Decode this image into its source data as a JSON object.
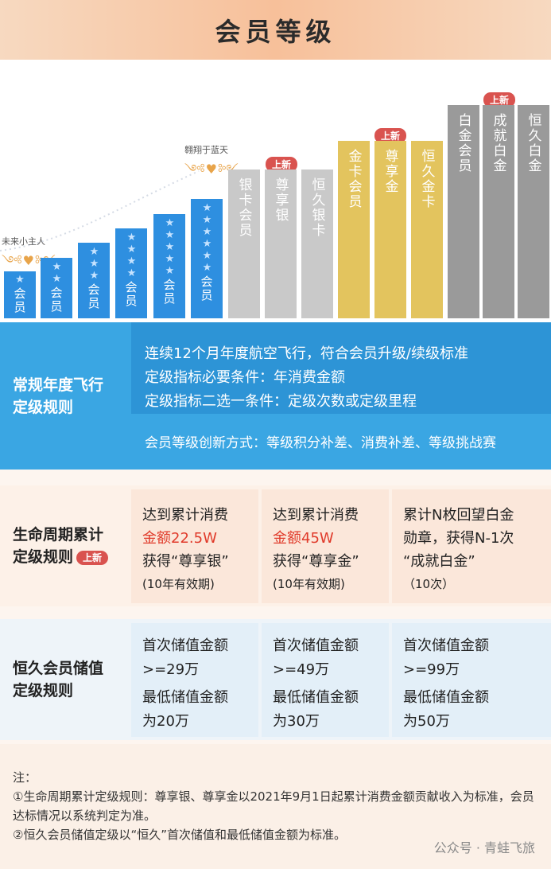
{
  "header": {
    "title": "会员等级"
  },
  "levels": {
    "star_label": "会员",
    "stars": [
      "★",
      "★★",
      "★★★",
      "★★★★",
      "★★★★★",
      "★★★★★★"
    ],
    "silver": [
      "银卡会员",
      "尊享银",
      "恒久银卡"
    ],
    "gold": [
      "金卡会员",
      "尊享金",
      "恒久金卡"
    ],
    "platinum": [
      "白金会员",
      "成就白金",
      "恒久白金"
    ],
    "new_tag": "上新",
    "wing_left": "未来小主人",
    "wing_right": "翱翔于蓝天",
    "wing_icon": "༺♥༻"
  },
  "regular": {
    "title_1": "常规年度飞行",
    "title_2": "定级规则",
    "line1": "连续12个月年度航空飞行，符合会员升级/续级标准",
    "line2": "定级指标必要条件：年消费金额",
    "line3": "定级指标二选一条件：定级次数或定级里程",
    "line4": "会员等级创新方式：等级积分补差、消费补差、等级挑战赛"
  },
  "lifecycle": {
    "title_1": "生命周期累计",
    "title_2": "定级规则",
    "badge": "上新",
    "cards": [
      {
        "l1": "达到累计消费",
        "l2": "金额22.5W",
        "l3": "获得“尊享银”",
        "l4": "(10年有效期)"
      },
      {
        "l1": "达到累计消费",
        "l2": "金额45W",
        "l3": "获得“尊享金”",
        "l4": "(10年有效期)"
      },
      {
        "l1": "累计N枚回望白金",
        "l2": "勋章，获得N-1次",
        "l3": "“成就白金”",
        "l4": "（10次）"
      }
    ]
  },
  "permanent": {
    "title_1": "恒久会员储值",
    "title_2": "定级规则",
    "cards": [
      {
        "l1": "首次储值金额",
        "l2": ">=29万",
        "l3": "最低储值金额",
        "l4": "为20万"
      },
      {
        "l1": "首次储值金额",
        "l2": ">=49万",
        "l3": "最低储值金额",
        "l4": "为30万"
      },
      {
        "l1": "首次储值金额",
        "l2": ">=99万",
        "l3": "最低储值金额",
        "l4": "为50万"
      }
    ]
  },
  "notes": {
    "head": "注：",
    "n1": "①生命周期累计定级规则：尊享银、尊享金以2021年9月1日起累计消费金额贡献收入为标准，会员达标情况以系统判定为准。",
    "n2": "②恒久会员储值定级以“恒久”首次储值和最低储值金额为标准。"
  },
  "watermark": "公众号 · 青蛙飞旅"
}
